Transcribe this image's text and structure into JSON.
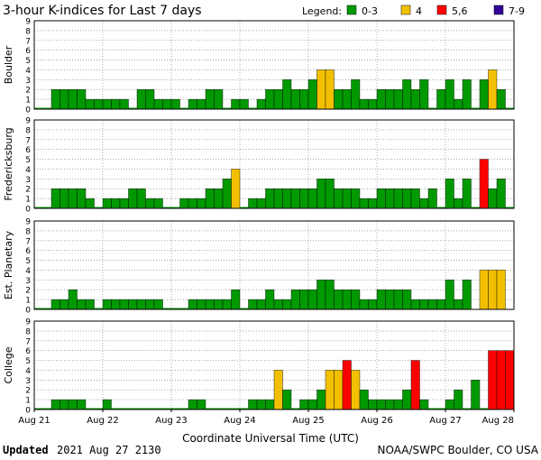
{
  "title": "3-hour K-indices for Last 7 days",
  "legend": {
    "label": "Legend:",
    "items": [
      {
        "label": "0-3",
        "color": "#009900"
      },
      {
        "label": "4",
        "color": "#f2c000"
      },
      {
        "label": "5,6",
        "color": "#ff0000"
      },
      {
        "label": "7-9",
        "color": "#330099"
      }
    ]
  },
  "xaxis": {
    "ticks": [
      "Aug 21",
      "Aug 22",
      "Aug 23",
      "Aug 24",
      "Aug 25",
      "Aug 26",
      "Aug 27",
      "Aug 28"
    ],
    "label": "Coordinate Universal Time (UTC)"
  },
  "footer": {
    "updated_label": "Updated",
    "updated_value": "2021 Aug 27 2130",
    "credit": "NOAA/SWPC Boulder, CO USA"
  },
  "chart_data": {
    "type": "bar",
    "ylim": [
      0,
      9
    ],
    "y_ticks": [
      0,
      1,
      2,
      3,
      4,
      5,
      6,
      7,
      8,
      9
    ],
    "bins_per_day": 8,
    "days": 7,
    "panels": [
      {
        "name": "Boulder",
        "values": [
          0,
          0,
          2,
          2,
          2,
          2,
          1,
          1,
          1,
          1,
          1,
          0,
          2,
          2,
          1,
          1,
          1,
          0,
          1,
          1,
          2,
          2,
          0,
          1,
          1,
          0,
          1,
          2,
          2,
          3,
          2,
          2,
          3,
          4,
          4,
          2,
          2,
          3,
          1,
          1,
          2,
          2,
          2,
          3,
          2,
          3,
          0,
          2,
          3,
          1,
          3,
          0,
          3,
          4,
          2,
          0
        ]
      },
      {
        "name": "Fredericksburg",
        "values": [
          0,
          0,
          2,
          2,
          2,
          2,
          1,
          0,
          1,
          1,
          1,
          2,
          2,
          1,
          1,
          0,
          0,
          1,
          1,
          1,
          2,
          2,
          3,
          4,
          0,
          1,
          1,
          2,
          2,
          2,
          2,
          2,
          2,
          3,
          3,
          2,
          2,
          2,
          1,
          1,
          2,
          2,
          2,
          2,
          2,
          1,
          2,
          0,
          3,
          1,
          3,
          0,
          5,
          2,
          3,
          0
        ]
      },
      {
        "name": "Est. Planetary",
        "values": [
          0,
          0,
          1,
          1,
          2,
          1,
          1,
          0,
          1,
          1,
          1,
          1,
          1,
          1,
          1,
          0,
          0,
          0,
          1,
          1,
          1,
          1,
          1,
          2,
          0,
          1,
          1,
          2,
          1,
          1,
          2,
          2,
          2,
          3,
          3,
          2,
          2,
          2,
          1,
          1,
          2,
          2,
          2,
          2,
          1,
          1,
          1,
          1,
          3,
          1,
          3,
          null,
          4,
          4,
          4,
          null
        ]
      },
      {
        "name": "College",
        "values": [
          0,
          0,
          1,
          1,
          1,
          1,
          0,
          0,
          1,
          0,
          0,
          0,
          0,
          0,
          0,
          0,
          0,
          0,
          1,
          1,
          0,
          0,
          0,
          0,
          0,
          1,
          1,
          1,
          4,
          2,
          0,
          1,
          1,
          2,
          4,
          4,
          5,
          4,
          2,
          1,
          1,
          1,
          1,
          2,
          5,
          1,
          0,
          0,
          1,
          2,
          0,
          3,
          0,
          6,
          6,
          6
        ]
      }
    ]
  }
}
